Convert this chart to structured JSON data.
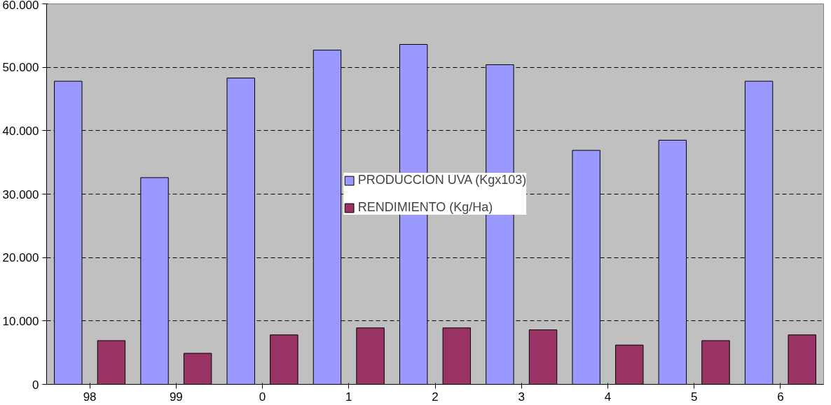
{
  "chart_data": {
    "type": "bar",
    "categories": [
      "98",
      "99",
      "0",
      "1",
      "2",
      "3",
      "4",
      "5",
      "6"
    ],
    "series": [
      {
        "name": "PRODUCCION UVA (Kgx103)",
        "color": "#9999ff",
        "values": [
          47800,
          32600,
          48300,
          52700,
          53600,
          50400,
          36900,
          38500,
          47800
        ]
      },
      {
        "name": "RENDIMIENTO (Kg/Ha)",
        "color": "#993366",
        "values": [
          6900,
          4900,
          7800,
          8900,
          8900,
          8600,
          6200,
          6900,
          7800
        ]
      }
    ],
    "ylim": [
      0,
      60000
    ],
    "yticks": [
      {
        "value": 0,
        "label": "0"
      },
      {
        "value": 10000,
        "label": "10.000"
      },
      {
        "value": 20000,
        "label": "20.000"
      },
      {
        "value": 30000,
        "label": "30.000"
      },
      {
        "value": 40000,
        "label": "40.000"
      },
      {
        "value": 50000,
        "label": "50.000"
      },
      {
        "value": 60000,
        "label": "60.000"
      }
    ],
    "grid": "y",
    "legend": "center"
  }
}
